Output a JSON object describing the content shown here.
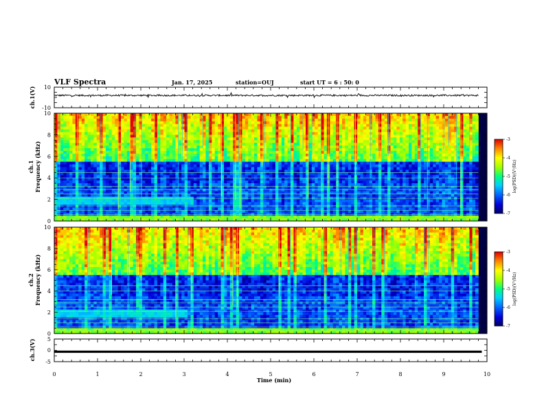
{
  "header": {
    "title": "VLF Spectra",
    "date": "Jan. 17, 2025",
    "station": "station=OUJ",
    "start_ut": "start UT =  6 : 50: 0"
  },
  "chart_data": [
    {
      "type": "line",
      "panel": "ch1-waveform",
      "ylabel": "ch.1(V)",
      "ylim": [
        -10,
        10
      ],
      "y_ticks": [
        "10",
        "-10"
      ],
      "xlim": [
        0,
        10
      ],
      "trace_level": 2,
      "trace_extent_min": 9.8
    },
    {
      "type": "heatmap",
      "panel": "ch1-spectrogram",
      "ylabel": "ch.1\nFrequency (kHz)",
      "ylim": [
        0,
        10
      ],
      "y_ticks": [
        "0",
        "2",
        "4",
        "6",
        "8",
        "10"
      ],
      "xlim": [
        0,
        10
      ],
      "data_extent_min": 9.8,
      "colorbar": {
        "label": "log(PSD)(V²/Hz)",
        "range": [
          -7,
          -3
        ],
        "ticks": [
          "-3",
          "-4",
          "-5",
          "-6",
          "-7"
        ]
      },
      "features": {
        "narrowband_lines_khz": [
          0.3,
          0.6,
          1.0,
          1.4,
          2.1,
          2.5,
          2.9,
          3.2,
          4.0,
          4.5
        ],
        "hiss_band": {
          "khz": [
            1.6,
            2.2
          ],
          "until_min": 3.2
        },
        "background_boundary_khz": 5.5
      }
    },
    {
      "type": "heatmap",
      "panel": "ch2-spectrogram",
      "ylabel": "ch.2\nFrequency (kHz)",
      "ylim": [
        0,
        10
      ],
      "y_ticks": [
        "0",
        "2",
        "4",
        "6",
        "8",
        "10"
      ],
      "xlim": [
        0,
        10
      ],
      "data_extent_min": 9.8,
      "colorbar": {
        "label": "log(PSD)(V²/Hz)",
        "range": [
          -7,
          -3
        ],
        "ticks": [
          "-3",
          "-4",
          "-5",
          "-6",
          "-7"
        ]
      },
      "features": {
        "narrowband_lines_khz": [
          0.3,
          0.6,
          1.0,
          1.4,
          2.1,
          2.5,
          2.9,
          3.2,
          4.0,
          4.5
        ],
        "hiss_band": {
          "khz": [
            1.6,
            2.3
          ],
          "until_min": 3.1
        },
        "background_boundary_khz": 5.5
      }
    },
    {
      "type": "line",
      "panel": "ch3-waveform",
      "ylabel": "ch.3(V)",
      "ylim": [
        -5,
        5
      ],
      "y_ticks": [
        "5",
        "0",
        "-5"
      ],
      "xlim": [
        0,
        10
      ],
      "trace_level": -0.6,
      "x_ticks": [
        "0",
        "1",
        "2",
        "3",
        "4",
        "5",
        "6",
        "7",
        "8",
        "9",
        "10"
      ],
      "xlabel": "Time (min)"
    }
  ],
  "colors": {
    "frame": "#000000",
    "colormap": [
      "#000066",
      "#0000d8",
      "#0064ff",
      "#00d0ff",
      "#00ff80",
      "#a0ff00",
      "#ffff00",
      "#ff8000",
      "#dd0000"
    ]
  }
}
